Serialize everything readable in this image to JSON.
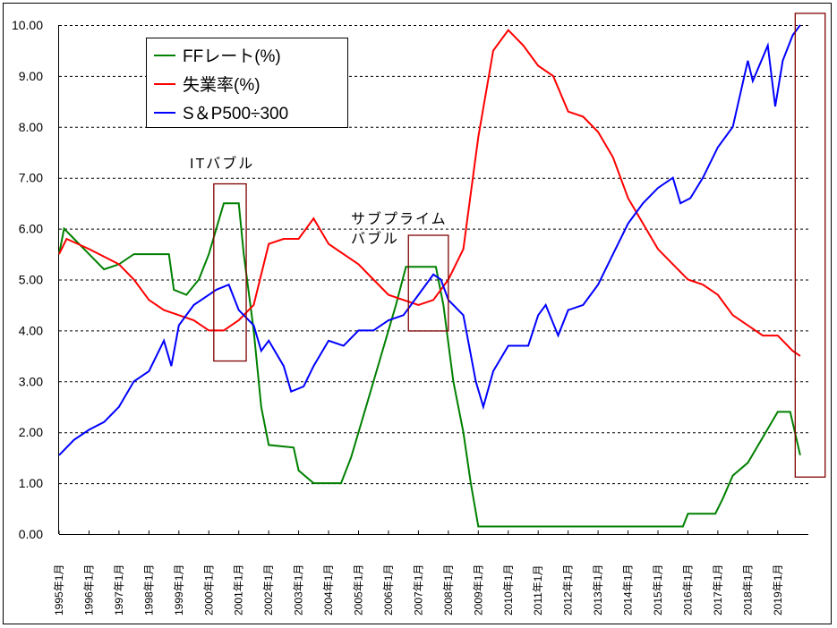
{
  "chart_data": {
    "type": "line",
    "title": "",
    "xlabel": "",
    "ylabel": "",
    "ylim": [
      0,
      10
    ],
    "yticks": [
      "0.00",
      "1.00",
      "2.00",
      "3.00",
      "4.00",
      "5.00",
      "6.00",
      "7.00",
      "8.00",
      "9.00",
      "10.00"
    ],
    "xlim": [
      "1995-01",
      "2019-12"
    ],
    "xticks": [
      "1995年1月",
      "1996年1月",
      "1997年1月",
      "1998年1月",
      "1999年1月",
      "2000年1月",
      "2001年1月",
      "2002年1月",
      "2003年1月",
      "2004年1月",
      "2005年1月",
      "2006年1月",
      "2007年1月",
      "2008年1月",
      "2009年1月",
      "2010年1月",
      "2011年1月",
      "2012年1月",
      "2013年1月",
      "2014年1月",
      "2015年1月",
      "2016年1月",
      "2017年1月",
      "2018年1月",
      "2019年1月"
    ],
    "grid": "horizontal-dashed",
    "legend_placement": "top-left",
    "series": [
      {
        "name": "FFレート(%)",
        "color": "#008000",
        "points": [
          [
            "1995-01",
            5.5
          ],
          [
            "1995-03",
            6.0
          ],
          [
            "1995-07",
            5.8
          ],
          [
            "1996-01",
            5.5
          ],
          [
            "1996-07",
            5.2
          ],
          [
            "1997-01",
            5.3
          ],
          [
            "1997-07",
            5.5
          ],
          [
            "1998-01",
            5.5
          ],
          [
            "1998-09",
            5.5
          ],
          [
            "1998-11",
            4.8
          ],
          [
            "1999-04",
            4.7
          ],
          [
            "1999-09",
            5.0
          ],
          [
            "2000-01",
            5.5
          ],
          [
            "2000-07",
            6.5
          ],
          [
            "2001-01",
            6.5
          ],
          [
            "2001-03",
            5.5
          ],
          [
            "2001-07",
            4.0
          ],
          [
            "2001-10",
            2.5
          ],
          [
            "2002-01",
            1.75
          ],
          [
            "2002-11",
            1.7
          ],
          [
            "2003-01",
            1.25
          ],
          [
            "2003-07",
            1.0
          ],
          [
            "2004-06",
            1.0
          ],
          [
            "2004-10",
            1.5
          ],
          [
            "2005-04",
            2.5
          ],
          [
            "2005-10",
            3.5
          ],
          [
            "2006-04",
            4.5
          ],
          [
            "2006-08",
            5.25
          ],
          [
            "2007-08",
            5.25
          ],
          [
            "2007-11",
            4.5
          ],
          [
            "2008-03",
            3.0
          ],
          [
            "2008-07",
            2.0
          ],
          [
            "2008-10",
            1.0
          ],
          [
            "2009-01",
            0.15
          ],
          [
            "2015-11",
            0.15
          ],
          [
            "2016-01",
            0.4
          ],
          [
            "2016-12",
            0.4
          ],
          [
            "2017-03",
            0.7
          ],
          [
            "2017-07",
            1.15
          ],
          [
            "2018-01",
            1.4
          ],
          [
            "2018-07",
            1.9
          ],
          [
            "2019-01",
            2.4
          ],
          [
            "2019-06",
            2.4
          ],
          [
            "2019-10",
            1.55
          ]
        ]
      },
      {
        "name": "失業率(%)",
        "color": "#ff0000",
        "points": [
          [
            "1995-01",
            5.5
          ],
          [
            "1995-04",
            5.8
          ],
          [
            "1996-01",
            5.6
          ],
          [
            "1997-01",
            5.3
          ],
          [
            "1997-07",
            5.0
          ],
          [
            "1998-01",
            4.6
          ],
          [
            "1998-07",
            4.4
          ],
          [
            "1999-01",
            4.3
          ],
          [
            "1999-07",
            4.2
          ],
          [
            "2000-01",
            4.0
          ],
          [
            "2000-07",
            4.0
          ],
          [
            "2001-01",
            4.2
          ],
          [
            "2001-07",
            4.5
          ],
          [
            "2002-01",
            5.7
          ],
          [
            "2002-07",
            5.8
          ],
          [
            "2003-01",
            5.8
          ],
          [
            "2003-07",
            6.2
          ],
          [
            "2004-01",
            5.7
          ],
          [
            "2004-07",
            5.5
          ],
          [
            "2005-01",
            5.3
          ],
          [
            "2005-07",
            5.0
          ],
          [
            "2006-01",
            4.7
          ],
          [
            "2006-07",
            4.6
          ],
          [
            "2007-01",
            4.5
          ],
          [
            "2007-07",
            4.6
          ],
          [
            "2008-01",
            5.0
          ],
          [
            "2008-07",
            5.6
          ],
          [
            "2009-01",
            7.8
          ],
          [
            "2009-07",
            9.5
          ],
          [
            "2010-01",
            9.9
          ],
          [
            "2010-07",
            9.6
          ],
          [
            "2011-01",
            9.2
          ],
          [
            "2011-07",
            9.0
          ],
          [
            "2012-01",
            8.3
          ],
          [
            "2012-07",
            8.2
          ],
          [
            "2013-01",
            7.9
          ],
          [
            "2013-07",
            7.4
          ],
          [
            "2014-01",
            6.6
          ],
          [
            "2014-07",
            6.1
          ],
          [
            "2015-01",
            5.6
          ],
          [
            "2015-07",
            5.3
          ],
          [
            "2016-01",
            5.0
          ],
          [
            "2016-07",
            4.9
          ],
          [
            "2017-01",
            4.7
          ],
          [
            "2017-07",
            4.3
          ],
          [
            "2018-01",
            4.1
          ],
          [
            "2018-07",
            3.9
          ],
          [
            "2019-01",
            3.9
          ],
          [
            "2019-07",
            3.6
          ],
          [
            "2019-10",
            3.5
          ]
        ]
      },
      {
        "name": "S＆P500÷300",
        "color": "#0000ff",
        "points": [
          [
            "1995-01",
            1.55
          ],
          [
            "1995-07",
            1.85
          ],
          [
            "1996-01",
            2.05
          ],
          [
            "1996-07",
            2.2
          ],
          [
            "1997-01",
            2.5
          ],
          [
            "1997-07",
            3.0
          ],
          [
            "1998-01",
            3.2
          ],
          [
            "1998-07",
            3.8
          ],
          [
            "1998-10",
            3.3
          ],
          [
            "1999-01",
            4.1
          ],
          [
            "1999-07",
            4.5
          ],
          [
            "2000-01",
            4.7
          ],
          [
            "2000-04",
            4.8
          ],
          [
            "2000-09",
            4.9
          ],
          [
            "2001-01",
            4.4
          ],
          [
            "2001-07",
            4.1
          ],
          [
            "2001-10",
            3.6
          ],
          [
            "2002-01",
            3.8
          ],
          [
            "2002-07",
            3.3
          ],
          [
            "2002-10",
            2.8
          ],
          [
            "2003-03",
            2.9
          ],
          [
            "2003-07",
            3.3
          ],
          [
            "2004-01",
            3.8
          ],
          [
            "2004-07",
            3.7
          ],
          [
            "2005-01",
            4.0
          ],
          [
            "2005-07",
            4.0
          ],
          [
            "2006-01",
            4.2
          ],
          [
            "2006-07",
            4.3
          ],
          [
            "2007-01",
            4.7
          ],
          [
            "2007-07",
            5.1
          ],
          [
            "2007-10",
            5.0
          ],
          [
            "2008-01",
            4.6
          ],
          [
            "2008-07",
            4.3
          ],
          [
            "2008-12",
            3.0
          ],
          [
            "2009-03",
            2.5
          ],
          [
            "2009-07",
            3.2
          ],
          [
            "2010-01",
            3.7
          ],
          [
            "2010-06",
            3.7
          ],
          [
            "2010-09",
            3.7
          ],
          [
            "2011-01",
            4.3
          ],
          [
            "2011-04",
            4.5
          ],
          [
            "2011-09",
            3.9
          ],
          [
            "2012-01",
            4.4
          ],
          [
            "2012-07",
            4.5
          ],
          [
            "2013-01",
            4.9
          ],
          [
            "2013-07",
            5.5
          ],
          [
            "2014-01",
            6.1
          ],
          [
            "2014-07",
            6.5
          ],
          [
            "2015-01",
            6.8
          ],
          [
            "2015-07",
            7.0
          ],
          [
            "2015-10",
            6.5
          ],
          [
            "2016-02",
            6.6
          ],
          [
            "2016-07",
            7.0
          ],
          [
            "2017-01",
            7.6
          ],
          [
            "2017-07",
            8.0
          ],
          [
            "2018-01",
            9.3
          ],
          [
            "2018-03",
            8.9
          ],
          [
            "2018-09",
            9.6
          ],
          [
            "2018-12",
            8.4
          ],
          [
            "2019-03",
            9.3
          ],
          [
            "2019-07",
            9.8
          ],
          [
            "2019-10",
            10.0
          ]
        ]
      }
    ],
    "annotations": [
      {
        "text": [
          "ITバブル"
        ],
        "box": {
          "x": [
            "2000-03",
            "2001-04"
          ],
          "y": [
            3.4,
            6.88
          ]
        }
      },
      {
        "text": [
          "サブプライム",
          "バブル"
        ],
        "box": {
          "x": [
            "2006-09",
            "2008-01"
          ],
          "y": [
            3.99,
            5.87
          ]
        }
      },
      {
        "text": [],
        "box": {
          "x": [
            "2019-08",
            "2020-08"
          ],
          "y": [
            1.12,
            10.23
          ]
        }
      }
    ],
    "annotation_color": "#800000"
  }
}
